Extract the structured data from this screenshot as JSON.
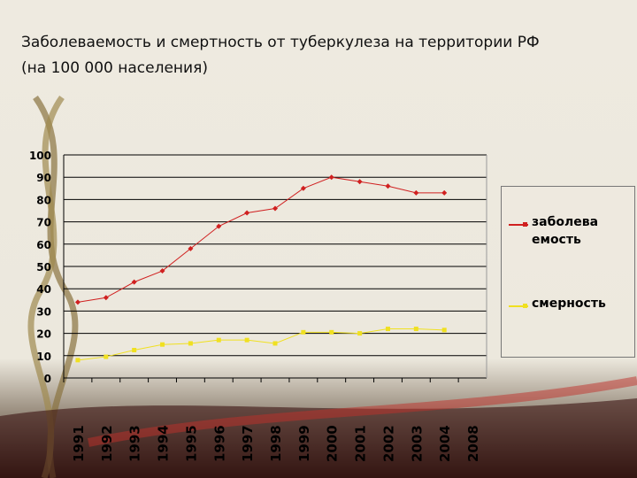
{
  "chart_data": {
    "type": "line",
    "title": "Заболеваемость и смертность от туберкулеза на территории РФ",
    "subtitle": "(на 100 000 населения)",
    "categories": [
      "1991",
      "1992",
      "1993",
      "1994",
      "1995",
      "1996",
      "1997",
      "1998",
      "1999",
      "2000",
      "2001",
      "2002",
      "2003",
      "2004",
      "2008"
    ],
    "series": [
      {
        "name": "заболеваемость",
        "color": "#d02020",
        "values": [
          34,
          36,
          43,
          48,
          58,
          68,
          74,
          76,
          85,
          90,
          88,
          86,
          83,
          83,
          null
        ]
      },
      {
        "name": "смерность",
        "color": "#f0e020",
        "values": [
          8,
          9.5,
          12.5,
          15,
          15.5,
          17,
          17,
          15.5,
          20.5,
          20.5,
          20,
          22,
          22,
          21.5,
          null
        ]
      }
    ],
    "ylim": [
      0,
      100
    ],
    "yticks": [
      0,
      10,
      20,
      30,
      40,
      50,
      60,
      70,
      80,
      90,
      100
    ],
    "grid": true
  }
}
